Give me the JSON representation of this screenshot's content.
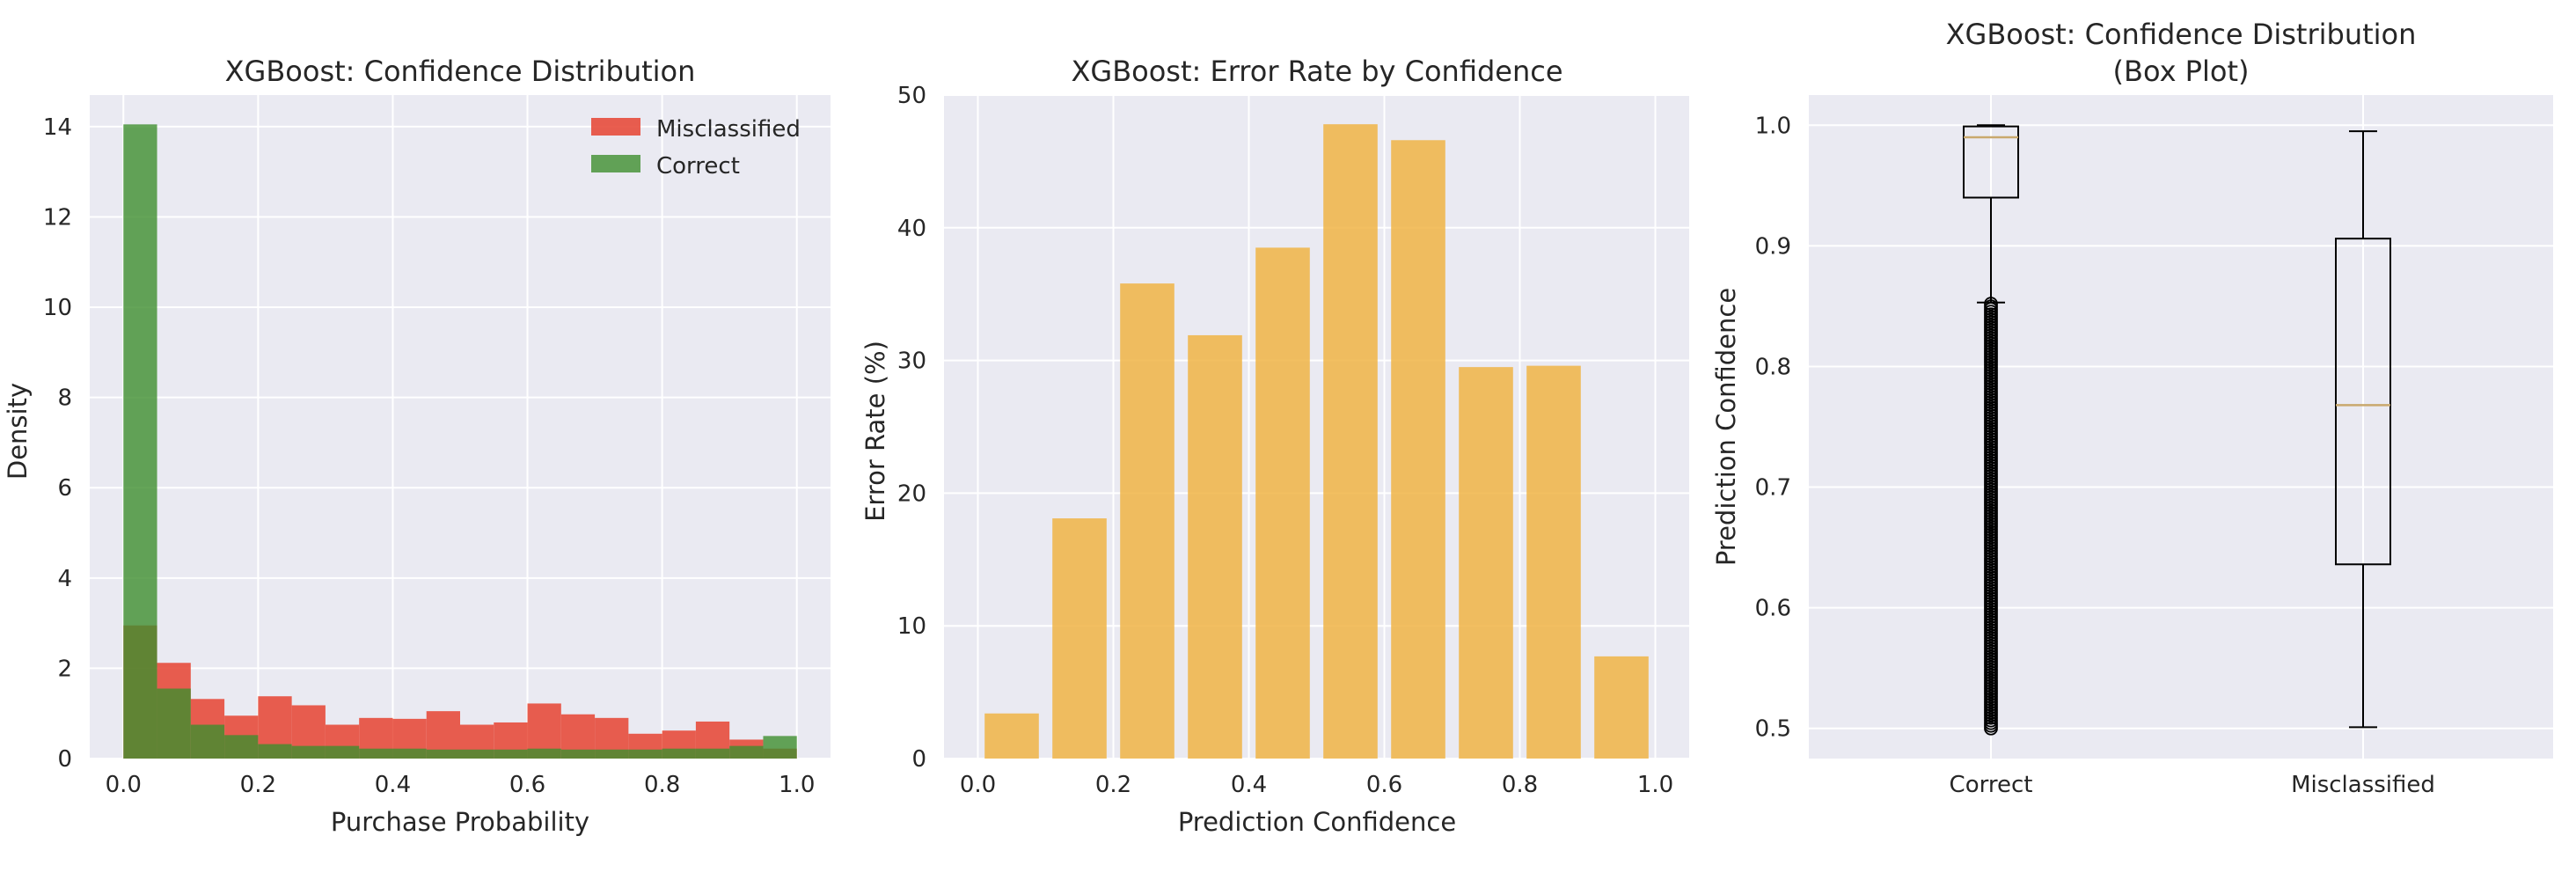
{
  "chart_data": [
    {
      "type": "histogram",
      "title": "XGBoost: Confidence Distribution",
      "xlabel": "Purchase Probability",
      "ylabel": "Density",
      "xlim": [
        -0.05,
        1.05
      ],
      "ylim": [
        0,
        14.7
      ],
      "xticks": [
        "0.0",
        "0.2",
        "0.4",
        "0.6",
        "0.8",
        "1.0"
      ],
      "yticks": [
        "0",
        "2",
        "4",
        "6",
        "8",
        "10",
        "12",
        "14"
      ],
      "grid": true,
      "legend_position": "upper right",
      "bin_edges": [
        0.0,
        0.05,
        0.1,
        0.15,
        0.2,
        0.25,
        0.3,
        0.35,
        0.4,
        0.45,
        0.5,
        0.55,
        0.6,
        0.65,
        0.7,
        0.75,
        0.8,
        0.85,
        0.9,
        0.95,
        1.0
      ],
      "series": [
        {
          "name": "Misclassified",
          "color": "#e74c3c",
          "values": [
            2.95,
            2.12,
            1.32,
            0.95,
            1.38,
            1.18,
            0.75,
            0.9,
            0.88,
            1.05,
            0.75,
            0.8,
            1.22,
            0.98,
            0.9,
            0.55,
            0.62,
            0.82,
            0.42,
            0.22
          ]
        },
        {
          "name": "Correct",
          "color": "#3f8f2e",
          "values": [
            14.05,
            1.55,
            0.75,
            0.52,
            0.32,
            0.28,
            0.28,
            0.22,
            0.22,
            0.2,
            0.2,
            0.2,
            0.22,
            0.2,
            0.2,
            0.2,
            0.22,
            0.22,
            0.28,
            0.5
          ]
        }
      ]
    },
    {
      "type": "bar",
      "title": "XGBoost: Error Rate by Confidence",
      "xlabel": "Prediction Confidence",
      "ylabel": "Error Rate (%)",
      "xlim": [
        -0.05,
        1.05
      ],
      "ylim": [
        0,
        50
      ],
      "xticks": [
        "0.0",
        "0.2",
        "0.4",
        "0.6",
        "0.8",
        "1.0"
      ],
      "yticks": [
        "0",
        "10",
        "20",
        "30",
        "40",
        "50"
      ],
      "grid": true,
      "color": "#f0b445",
      "x": [
        0.05,
        0.15,
        0.25,
        0.35,
        0.45,
        0.55,
        0.65,
        0.75,
        0.85,
        0.95
      ],
      "values": [
        3.4,
        18.1,
        35.8,
        31.9,
        38.5,
        47.8,
        46.6,
        29.5,
        29.6,
        7.7
      ]
    },
    {
      "type": "box",
      "title": "XGBoost: Confidence Distribution",
      "subtitle": "(Box Plot)",
      "xlabel": "",
      "ylabel": "Prediction Confidence",
      "ylim": [
        0.475,
        1.025
      ],
      "yticks": [
        "0.5",
        "0.6",
        "0.7",
        "0.8",
        "0.9",
        "1.0"
      ],
      "grid": true,
      "categories": [
        "Correct",
        "Misclassified"
      ],
      "boxes": [
        {
          "name": "Correct",
          "whisker_low": 0.853,
          "q1": 0.94,
          "median": 0.99,
          "q3": 0.999,
          "whisker_high": 1.0,
          "outliers_range": [
            0.5,
            0.852
          ]
        },
        {
          "name": "Misclassified",
          "whisker_low": 0.501,
          "q1": 0.636,
          "median": 0.768,
          "q3": 0.906,
          "whisker_high": 0.995
        }
      ],
      "median_color": "#c9a96e"
    }
  ]
}
